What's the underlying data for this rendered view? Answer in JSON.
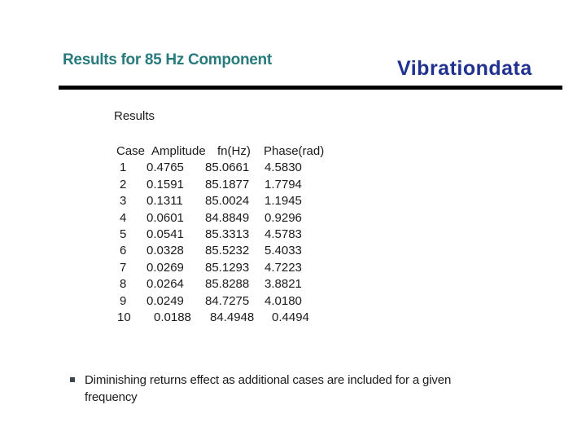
{
  "slide": {
    "title": "Results for 85 Hz Component",
    "logo": "Vibrationdata",
    "section_label": "Results",
    "table": {
      "headers": [
        "Case",
        "Amplitude",
        "fn(Hz)",
        "Phase(rad)"
      ],
      "rows": [
        [
          "1",
          "0.4765",
          "85.0661",
          "4.5830"
        ],
        [
          "2",
          "0.1591",
          "85.1877",
          "1.7794"
        ],
        [
          "3",
          "0.1311",
          "85.0024",
          "1.1945"
        ],
        [
          "4",
          "0.0601",
          "84.8849",
          "0.9296"
        ],
        [
          "5",
          "0.0541",
          "85.3313",
          "4.5783"
        ],
        [
          "6",
          "0.0328",
          "85.5232",
          "5.4033"
        ],
        [
          "7",
          "0.0269",
          "85.1293",
          "4.7223"
        ],
        [
          "8",
          "0.0264",
          "85.8288",
          "3.8821"
        ],
        [
          "9",
          "0.0249",
          "84.7275",
          "4.0180"
        ],
        [
          "10",
          "0.0188",
          "84.4948",
          "0.4494"
        ]
      ]
    },
    "bullet": "Diminishing returns effect as additional cases are included for a given frequency",
    "colors": {
      "title": "#287a7d",
      "logo": "#203190",
      "divider": "#000000",
      "text": "#1b1b1b",
      "bullet_marker": "#3a4550"
    }
  }
}
